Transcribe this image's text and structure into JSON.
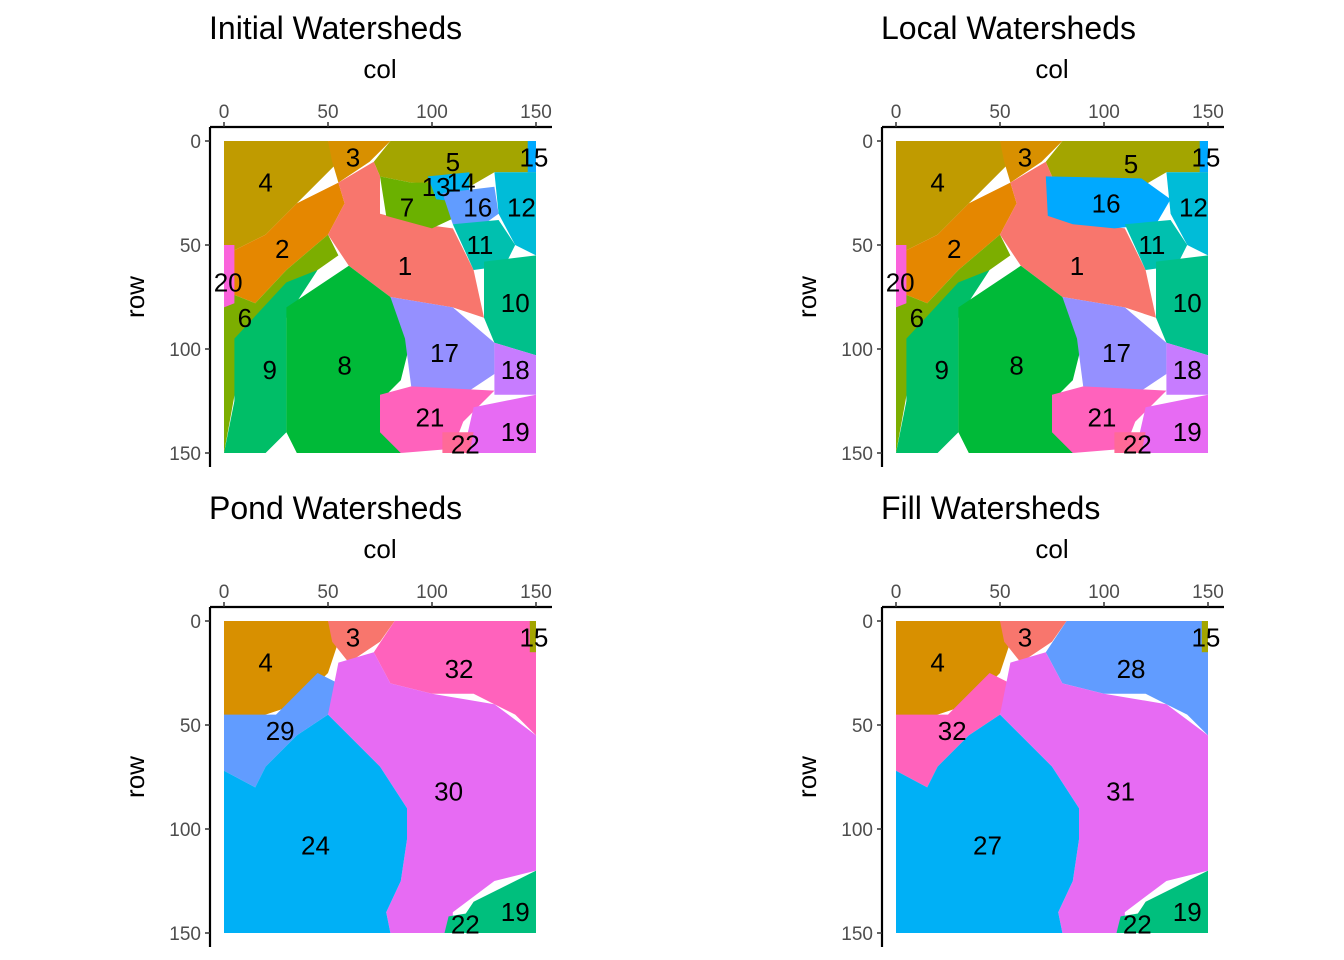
{
  "chart_data": [
    {
      "type": "heatmap",
      "title": "Initial Watersheds",
      "xlabel": "col",
      "ylabel": "row",
      "xlim": [
        0,
        150
      ],
      "ylim": [
        150,
        0
      ],
      "x_ticks": [
        "0",
        "50",
        "100",
        "150"
      ],
      "y_ticks": [
        "0",
        "50",
        "100",
        "150"
      ],
      "regions": [
        {
          "id": "1",
          "label_x": 87,
          "label_y": 60,
          "color": "#f8766d"
        },
        {
          "id": "2",
          "label_x": 28,
          "label_y": 52,
          "color": "#e58700"
        },
        {
          "id": "3",
          "label_x": 62,
          "label_y": 8,
          "color": "#d89000"
        },
        {
          "id": "4",
          "label_x": 20,
          "label_y": 20,
          "color": "#c09b00"
        },
        {
          "id": "5",
          "label_x": 110,
          "label_y": 10,
          "color": "#a3a500"
        },
        {
          "id": "6",
          "label_x": 10,
          "label_y": 85,
          "color": "#7cae00"
        },
        {
          "id": "7",
          "label_x": 88,
          "label_y": 32,
          "color": "#6bb100"
        },
        {
          "id": "8",
          "label_x": 58,
          "label_y": 108,
          "color": "#00ba38"
        },
        {
          "id": "9",
          "label_x": 22,
          "label_y": 110,
          "color": "#00be67"
        },
        {
          "id": "10",
          "label_x": 140,
          "label_y": 78,
          "color": "#00c08b"
        },
        {
          "id": "11",
          "label_x": 123,
          "label_y": 50,
          "color": "#00c0af"
        },
        {
          "id": "12",
          "label_x": 143,
          "label_y": 32,
          "color": "#00bcd8"
        },
        {
          "id": "13",
          "label_x": 102,
          "label_y": 22,
          "color": "#00b4f0"
        },
        {
          "id": "14",
          "label_x": 114,
          "label_y": 20,
          "color": "#00a9ff"
        },
        {
          "id": "15",
          "label_x": 149,
          "label_y": 8,
          "color": "#00a9ff"
        },
        {
          "id": "16",
          "label_x": 122,
          "label_y": 32,
          "color": "#619cff"
        },
        {
          "id": "17",
          "label_x": 106,
          "label_y": 102,
          "color": "#9590ff"
        },
        {
          "id": "18",
          "label_x": 140,
          "label_y": 110,
          "color": "#c77cff"
        },
        {
          "id": "19",
          "label_x": 140,
          "label_y": 140,
          "color": "#e76bf3"
        },
        {
          "id": "20",
          "label_x": 2,
          "label_y": 68,
          "color": "#fa62db"
        },
        {
          "id": "21",
          "label_x": 99,
          "label_y": 133,
          "color": "#ff62bc"
        },
        {
          "id": "22",
          "label_x": 116,
          "label_y": 146,
          "color": "#ff6a98"
        }
      ]
    },
    {
      "type": "heatmap",
      "title": "Local Watersheds",
      "xlabel": "col",
      "ylabel": "row",
      "xlim": [
        0,
        150
      ],
      "ylim": [
        150,
        0
      ],
      "x_ticks": [
        "0",
        "50",
        "100",
        "150"
      ],
      "y_ticks": [
        "0",
        "50",
        "100",
        "150"
      ],
      "regions": [
        {
          "id": "1",
          "label_x": 87,
          "label_y": 60,
          "color": "#f8766d"
        },
        {
          "id": "2",
          "label_x": 28,
          "label_y": 52,
          "color": "#e58700"
        },
        {
          "id": "3",
          "label_x": 62,
          "label_y": 8,
          "color": "#d89000"
        },
        {
          "id": "4",
          "label_x": 20,
          "label_y": 20,
          "color": "#c09b00"
        },
        {
          "id": "5",
          "label_x": 113,
          "label_y": 11,
          "color": "#a3a500"
        },
        {
          "id": "6",
          "label_x": 10,
          "label_y": 85,
          "color": "#7cae00"
        },
        {
          "id": "8",
          "label_x": 58,
          "label_y": 108,
          "color": "#00ba38"
        },
        {
          "id": "9",
          "label_x": 22,
          "label_y": 110,
          "color": "#00be67"
        },
        {
          "id": "10",
          "label_x": 140,
          "label_y": 78,
          "color": "#00c08b"
        },
        {
          "id": "11",
          "label_x": 123,
          "label_y": 50,
          "color": "#00c0af"
        },
        {
          "id": "12",
          "label_x": 143,
          "label_y": 32,
          "color": "#00bcd8"
        },
        {
          "id": "15",
          "label_x": 149,
          "label_y": 8,
          "color": "#00a9ff"
        },
        {
          "id": "16",
          "label_x": 101,
          "label_y": 30,
          "color": "#00a9ff"
        },
        {
          "id": "17",
          "label_x": 106,
          "label_y": 102,
          "color": "#9590ff"
        },
        {
          "id": "18",
          "label_x": 140,
          "label_y": 110,
          "color": "#c77cff"
        },
        {
          "id": "19",
          "label_x": 140,
          "label_y": 140,
          "color": "#e76bf3"
        },
        {
          "id": "20",
          "label_x": 2,
          "label_y": 68,
          "color": "#fa62db"
        },
        {
          "id": "21",
          "label_x": 99,
          "label_y": 133,
          "color": "#ff62bc"
        },
        {
          "id": "22",
          "label_x": 116,
          "label_y": 146,
          "color": "#ff6a98"
        }
      ]
    },
    {
      "type": "heatmap",
      "title": "Pond Watersheds",
      "xlabel": "col",
      "ylabel": "row",
      "xlim": [
        0,
        150
      ],
      "ylim": [
        150,
        0
      ],
      "x_ticks": [
        "0",
        "50",
        "100",
        "150"
      ],
      "y_ticks": [
        "0",
        "50",
        "100",
        "150"
      ],
      "regions": [
        {
          "id": "3",
          "label_x": 62,
          "label_y": 8,
          "color": "#f8766d"
        },
        {
          "id": "4",
          "label_x": 20,
          "label_y": 20,
          "color": "#d89000"
        },
        {
          "id": "15",
          "label_x": 149,
          "label_y": 8,
          "color": "#a3a500"
        },
        {
          "id": "19",
          "label_x": 140,
          "label_y": 140,
          "color": "#00bf7d"
        },
        {
          "id": "22",
          "label_x": 116,
          "label_y": 146,
          "color": "#00bf7d"
        },
        {
          "id": "24",
          "label_x": 44,
          "label_y": 108,
          "color": "#00b0f6"
        },
        {
          "id": "29",
          "label_x": 27,
          "label_y": 53,
          "color": "#619cff"
        },
        {
          "id": "30",
          "label_x": 108,
          "label_y": 82,
          "color": "#e76bf3"
        },
        {
          "id": "32",
          "label_x": 113,
          "label_y": 23,
          "color": "#ff62bc"
        }
      ]
    },
    {
      "type": "heatmap",
      "title": "Fill Watersheds",
      "xlabel": "col",
      "ylabel": "row",
      "xlim": [
        0,
        150
      ],
      "ylim": [
        150,
        0
      ],
      "x_ticks": [
        "0",
        "50",
        "100",
        "150"
      ],
      "y_ticks": [
        "0",
        "50",
        "100",
        "150"
      ],
      "regions": [
        {
          "id": "3",
          "label_x": 62,
          "label_y": 8,
          "color": "#f8766d"
        },
        {
          "id": "4",
          "label_x": 20,
          "label_y": 20,
          "color": "#d89000"
        },
        {
          "id": "15",
          "label_x": 149,
          "label_y": 8,
          "color": "#a3a500"
        },
        {
          "id": "19",
          "label_x": 140,
          "label_y": 140,
          "color": "#00bf7d"
        },
        {
          "id": "22",
          "label_x": 116,
          "label_y": 146,
          "color": "#00bf7d"
        },
        {
          "id": "27",
          "label_x": 44,
          "label_y": 108,
          "color": "#00b0f6"
        },
        {
          "id": "28",
          "label_x": 113,
          "label_y": 23,
          "color": "#619cff"
        },
        {
          "id": "31",
          "label_x": 108,
          "label_y": 82,
          "color": "#e76bf3"
        },
        {
          "id": "32",
          "label_x": 27,
          "label_y": 53,
          "color": "#ff62bc"
        }
      ]
    }
  ]
}
